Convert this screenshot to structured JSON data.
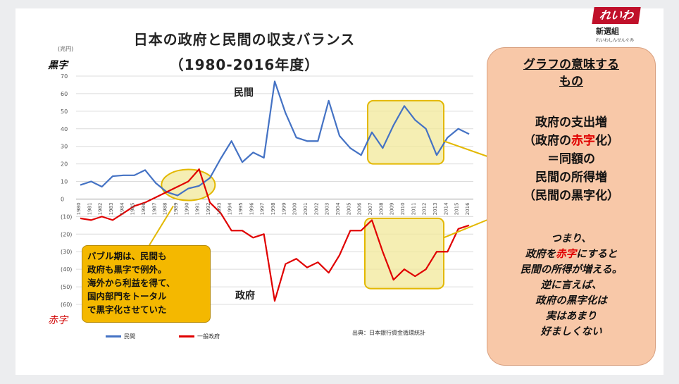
{
  "slide": {
    "title_line1": "日本の政府と民間の収支バランス",
    "title_line2": "（1980-2016年度）",
    "unit_label": "(兆円)",
    "black_label": "黒字",
    "red_label": "赤字",
    "source": "出典：日本銀行資金循環統計",
    "callout": [
      "バブル期は、民間も",
      "政府も黒字で例外。",
      "海外から利益を得て、",
      "国内部門をトータル",
      "で黒字化させていた"
    ]
  },
  "panel": {
    "heading": [
      "グラフの意味する",
      "もの"
    ],
    "line1": "政府の支出増",
    "line2_pre": "（政府の",
    "line2_red": "赤字",
    "line2_post": "化）",
    "line3": "＝同額の",
    "line4": "民間の所得増",
    "line5": "（民間の黒字化）",
    "p1": "つまり、",
    "p2_pre": "政府を",
    "p2_red": "赤字",
    "p2_post": "にすると",
    "p3": "民間の所得が増える。",
    "p4": "逆に言えば、",
    "p5": "政府の黒字化は",
    "p6": "実はあまり",
    "p7": "好ましくない"
  },
  "logo": {
    "main": "れいわ",
    "sub": "新選組",
    "tiny": "れいわしんせんぐみ"
  },
  "colors": {
    "private": "#4472c4",
    "government": "#e00000",
    "highlight": "#f2e89a",
    "callout": "#f4b800",
    "panel": "#f8c8a8"
  },
  "chart_data": {
    "type": "line",
    "x": [
      1980,
      1981,
      1982,
      1983,
      1984,
      1985,
      1986,
      1987,
      1988,
      1989,
      1990,
      1991,
      1992,
      1993,
      1994,
      1995,
      1996,
      1997,
      1998,
      1999,
      2000,
      2001,
      2002,
      2003,
      2004,
      2005,
      2006,
      2007,
      2008,
      2009,
      2010,
      2011,
      2012,
      2013,
      2014,
      2015,
      2016
    ],
    "ylim": [
      -60,
      70
    ],
    "yticks": [
      70,
      60,
      50,
      40,
      30,
      20,
      10,
      0,
      -10,
      -20,
      -30,
      -40,
      -50,
      -60
    ],
    "ytick_labels": [
      "70",
      "60",
      "50",
      "40",
      "30",
      "20",
      "10",
      "0",
      "(10)",
      "(20)",
      "(30)",
      "(40)",
      "(50)",
      "(60)"
    ],
    "series": [
      {
        "name": "民間",
        "line_label": "民間",
        "color": "#4472c4",
        "values": [
          8,
          10,
          7,
          13,
          13.5,
          13.5,
          16.5,
          9,
          4,
          2,
          6,
          7.5,
          12,
          23,
          33,
          21,
          26.5,
          23.5,
          67,
          49,
          35,
          33,
          33,
          56,
          36,
          29,
          25,
          38,
          29,
          42,
          53,
          45,
          40,
          25,
          35,
          40,
          37
        ]
      },
      {
        "name": "一般政府",
        "line_label": "政府",
        "color": "#e00000",
        "values": [
          -11,
          -12,
          -10,
          -12,
          -8,
          -4,
          -2,
          1,
          4,
          7,
          10,
          17,
          -2,
          -8,
          -18,
          -18,
          -22,
          -20,
          -58,
          -37,
          -34,
          -39,
          -36,
          -42,
          -32,
          -18,
          -18,
          -12,
          -30,
          -46,
          -40,
          -44,
          -40,
          -30,
          -30,
          -17,
          -15
        ]
      }
    ],
    "annotations": [
      "民間",
      "政府"
    ],
    "legend": [
      "民間",
      "一般政府"
    ],
    "grid": true
  }
}
